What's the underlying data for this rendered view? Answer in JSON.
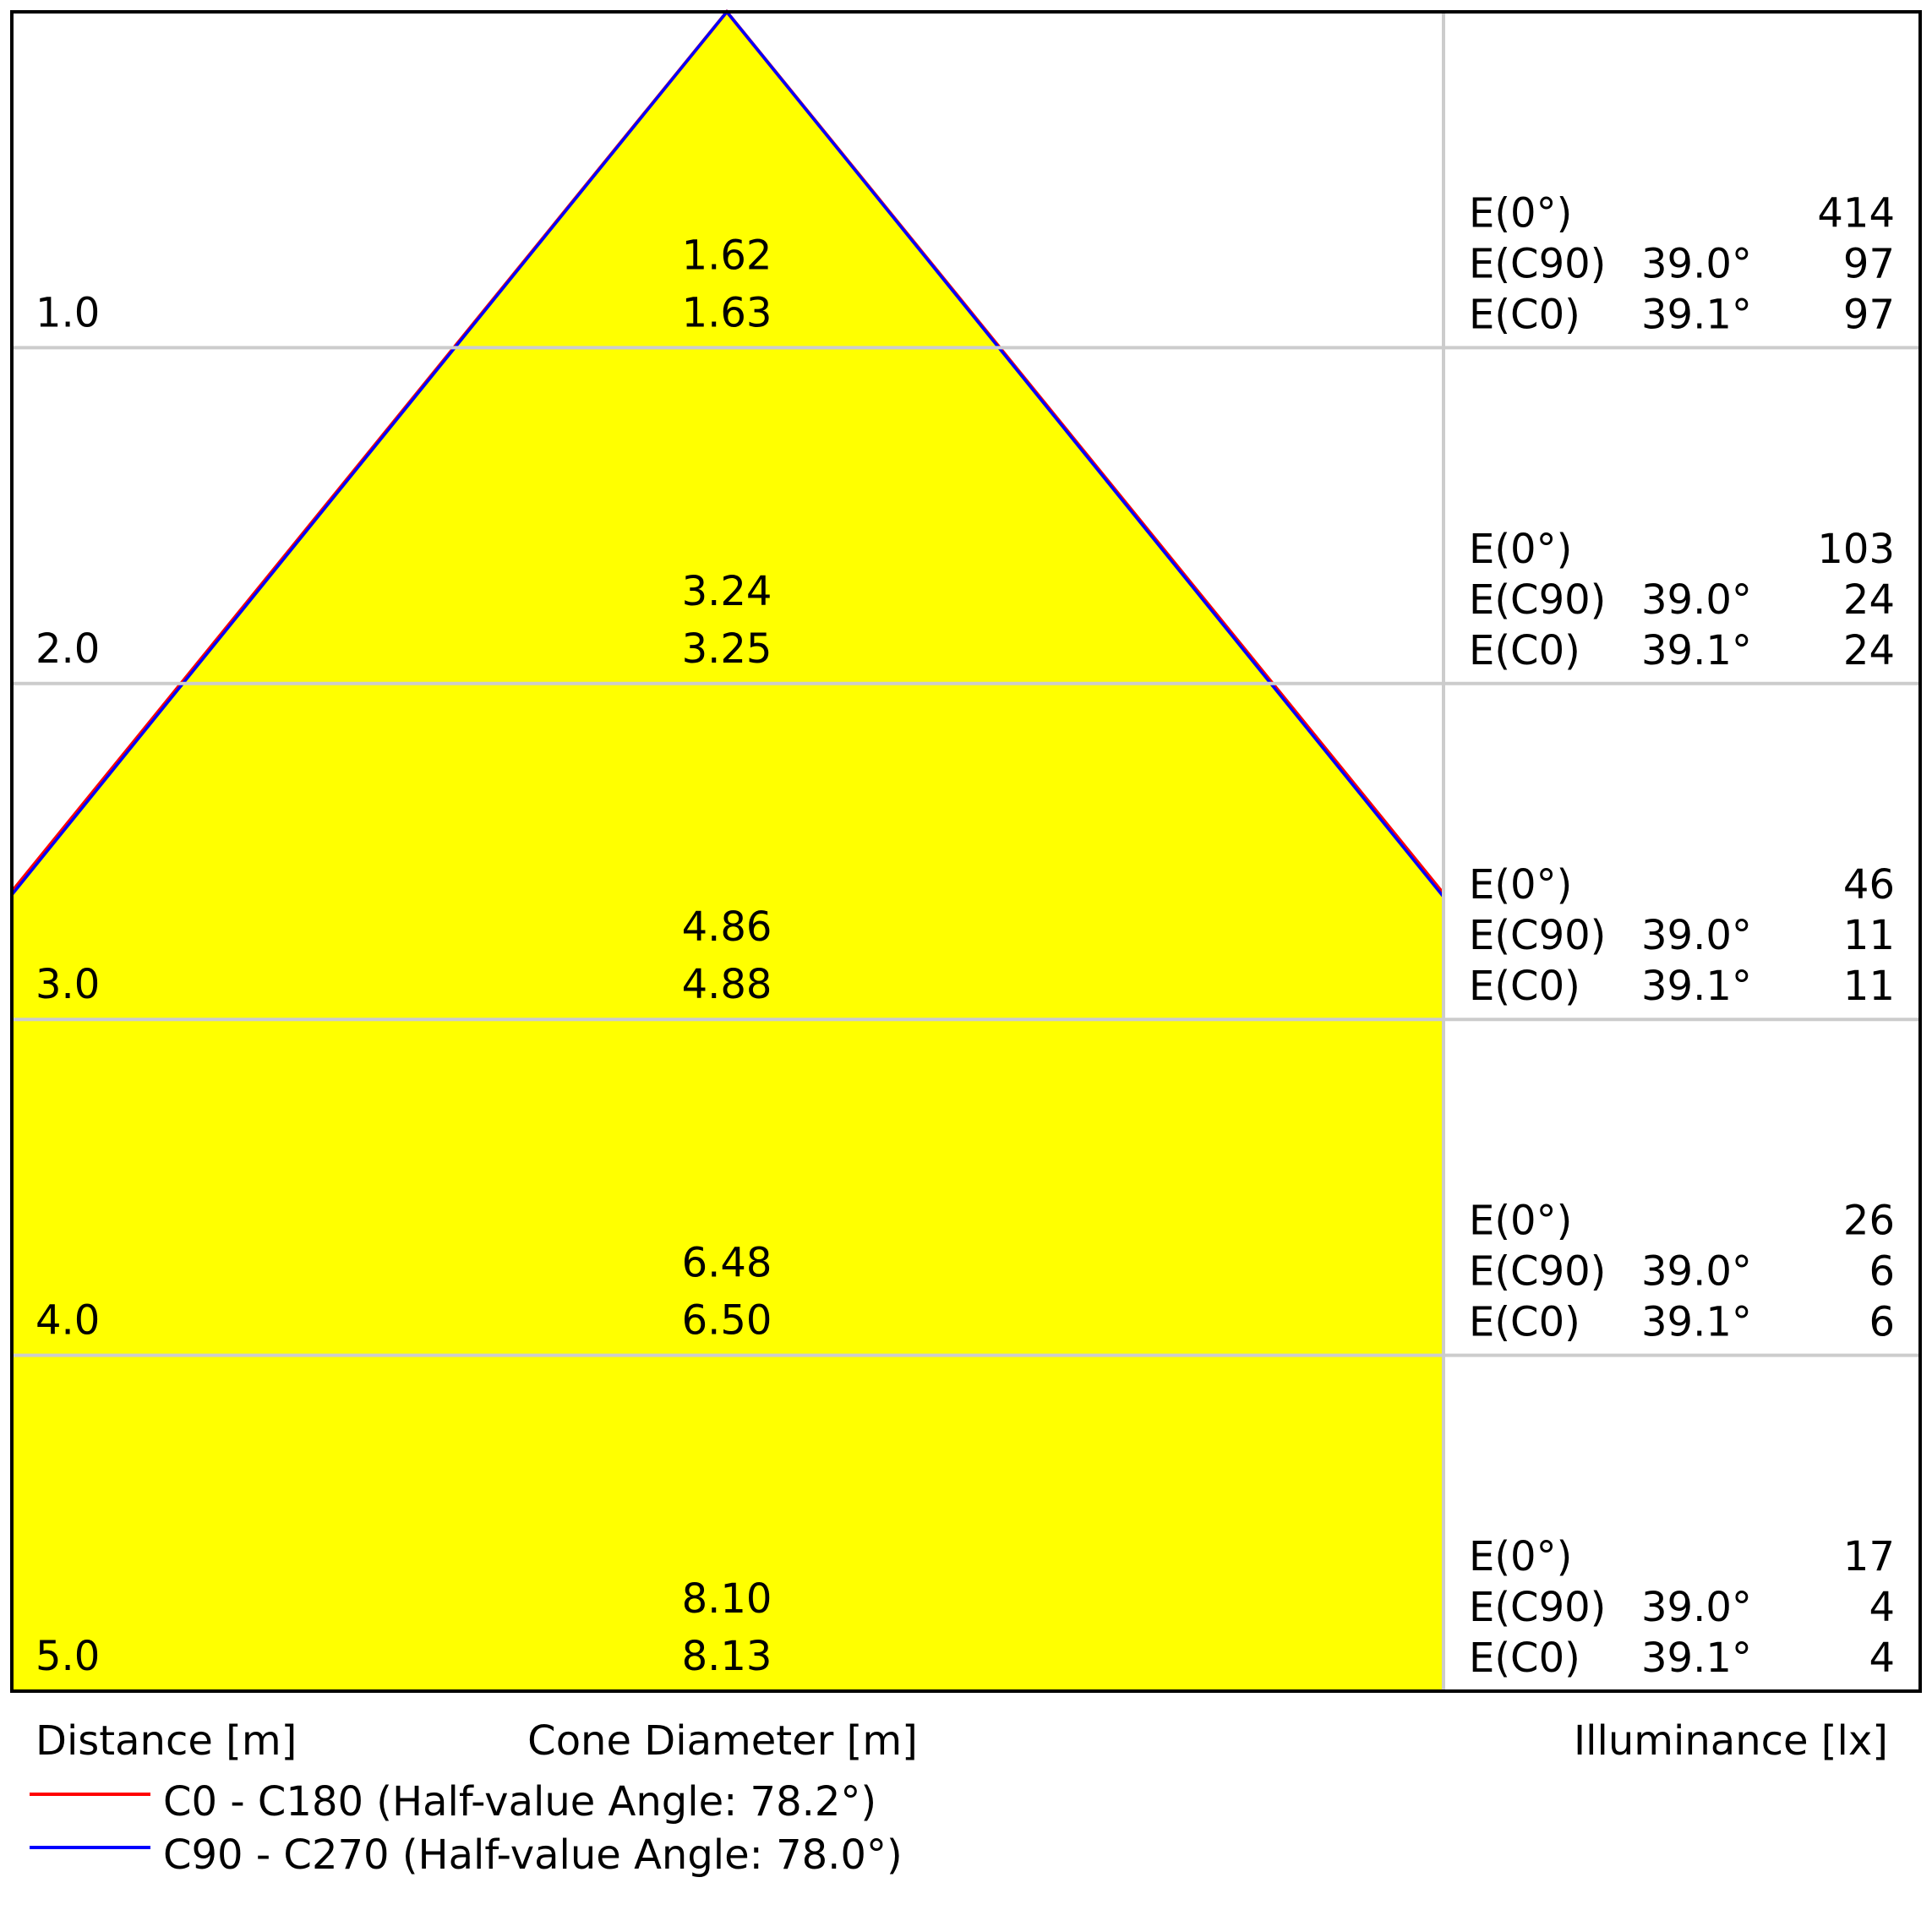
{
  "chart_data": {
    "type": "area",
    "title": "",
    "xlabel": "Cone Diameter [m]",
    "ylabel": "Distance [m]",
    "right_label": "Illuminance [lx]",
    "distances": [
      "1.0",
      "2.0",
      "3.0",
      "4.0",
      "5.0"
    ],
    "diameter_c0": [
      "1.62",
      "3.24",
      "4.86",
      "6.48",
      "8.10"
    ],
    "diameter_c90": [
      "1.63",
      "3.25",
      "4.88",
      "6.50",
      "8.13"
    ],
    "rows": [
      {
        "e0_label": "E(0°)",
        "e0": "414",
        "ec90_label": "E(C90)",
        "ec90_angle": "39.0°",
        "ec90": "97",
        "ec0_label": "E(C0)",
        "ec0_angle": "39.1°",
        "ec0": "97"
      },
      {
        "e0_label": "E(0°)",
        "e0": "103",
        "ec90_label": "E(C90)",
        "ec90_angle": "39.0°",
        "ec90": "24",
        "ec0_label": "E(C0)",
        "ec0_angle": "39.1°",
        "ec0": "24"
      },
      {
        "e0_label": "E(0°)",
        "e0": "46",
        "ec90_label": "E(C90)",
        "ec90_angle": "39.0°",
        "ec90": "11",
        "ec0_label": "E(C0)",
        "ec0_angle": "39.1°",
        "ec0": "11"
      },
      {
        "e0_label": "E(0°)",
        "e0": "26",
        "ec90_label": "E(C90)",
        "ec90_angle": "39.0°",
        "ec90": "6",
        "ec0_label": "E(C0)",
        "ec0_angle": "39.1°",
        "ec0": "6"
      },
      {
        "e0_label": "E(0°)",
        "e0": "17",
        "ec90_label": "E(C90)",
        "ec90_angle": "39.0°",
        "ec90": "4",
        "ec0_label": "E(C0)",
        "ec0_angle": "39.1°",
        "ec0": "4"
      }
    ],
    "half_angle_c0": 78.2,
    "half_angle_c90": 78.0,
    "max_distance": 5.0,
    "series": [
      {
        "name": "C0 - C180 (Half-value Angle: 78.2°)",
        "color": "#ff0000"
      },
      {
        "name": "C90 - C270 (Half-value Angle: 78.0°)",
        "color": "#0000ff"
      }
    ],
    "fill_color": "#ffff00",
    "grid": true
  }
}
